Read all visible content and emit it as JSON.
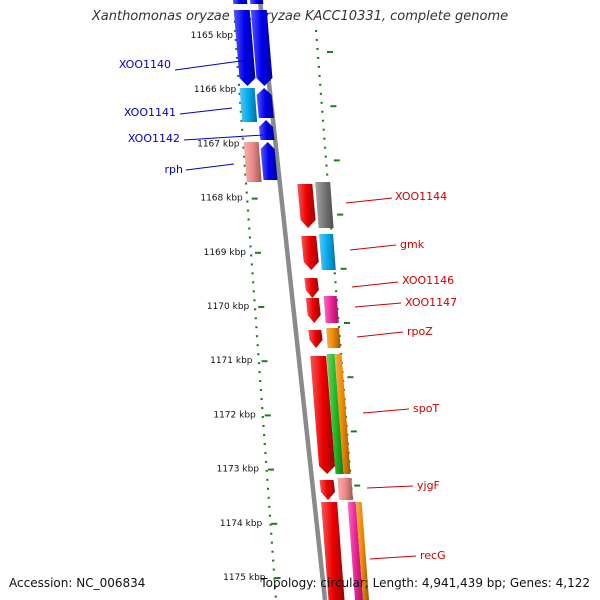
{
  "title": "Xanthomonas oryzae pv. oryzae KACC10331, complete genome",
  "footer": {
    "accession": "Accession: NC_006834",
    "topology": "Topology: circular; Length: 4,941,439 bp; Genes: 4,122"
  },
  "colors": {
    "forward_label": "#0000cc",
    "reverse_label": "#cc0000",
    "tick": "#1b7f1b",
    "backbone": "#8a8a8a"
  },
  "ticks": [
    "1165 kbp",
    "1166 kbp",
    "1167 kbp",
    "1168 kbp",
    "1169 kbp",
    "1170 kbp",
    "1171 kbp",
    "1172 kbp",
    "1173 kbp",
    "1174 kbp",
    "1175 kbp"
  ],
  "genes_forward": [
    {
      "name": "",
      "color": "#0000ee"
    },
    {
      "name": "XOO1140",
      "color": "#0000ee"
    },
    {
      "name": "XOO1141",
      "color": "#00aaee"
    },
    {
      "name": "XOO1142",
      "color": "#0000ee"
    },
    {
      "name": "rph",
      "color": "#ee8888"
    }
  ],
  "genes_reverse": [
    {
      "name": "XOO1144",
      "color": "#777777"
    },
    {
      "name": "gmk",
      "color": "#00aaee"
    },
    {
      "name": "XOO1146",
      "color": "#ee0000"
    },
    {
      "name": "XOO1147",
      "color": "#ee2299"
    },
    {
      "name": "rpoZ",
      "color": "#ee8800"
    },
    {
      "name": "spoT",
      "color": "#22bb22"
    },
    {
      "name": "yjgF",
      "color": "#ee8888"
    },
    {
      "name": "recG",
      "color": "#ee2299"
    }
  ],
  "cog_tracks": [
    {
      "name": "",
      "color": "#ee0000"
    },
    {
      "name": "",
      "color": "#ee8800"
    },
    {
      "name": "",
      "color": "#22bb22"
    },
    {
      "name": "",
      "color": "#ee2299"
    }
  ]
}
